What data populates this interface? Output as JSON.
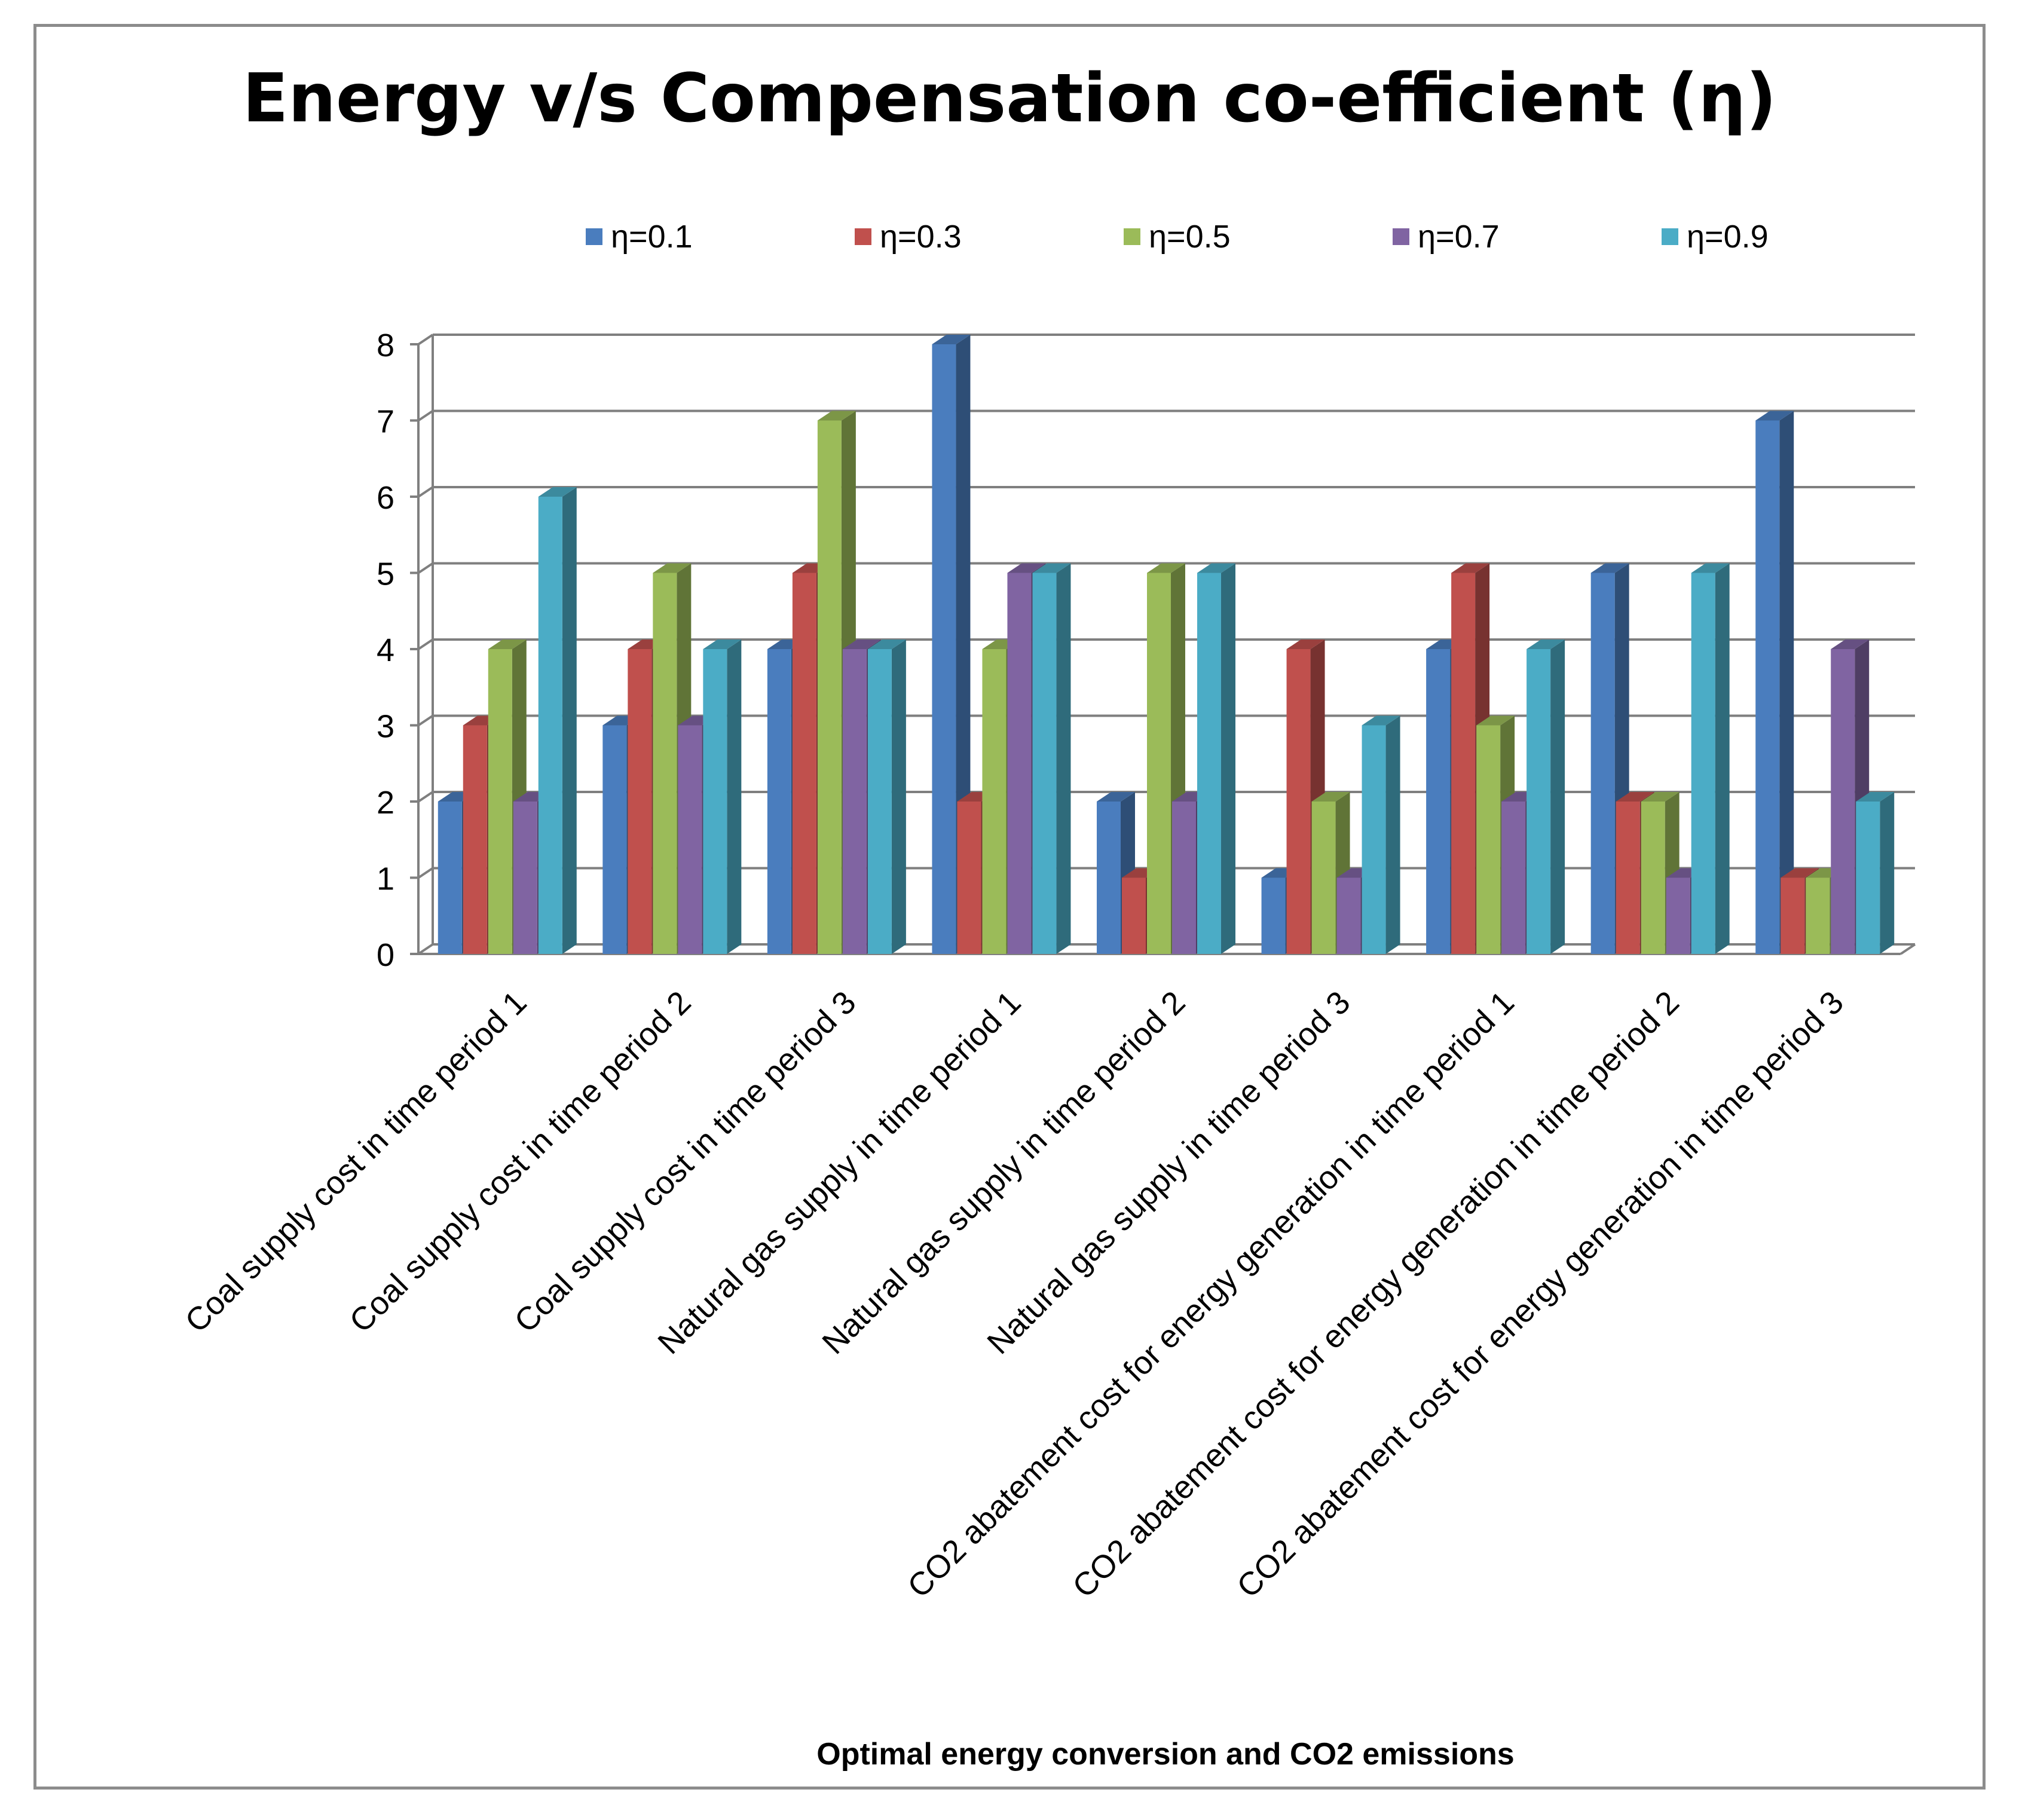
{
  "chart_data": {
    "type": "bar",
    "title": "Energy v/s Compensation co-efficient (η)",
    "xlabel": "Optimal energy conversion and CO2 emissions",
    "ylabel": "",
    "ylim": [
      0,
      8
    ],
    "yticks": [
      "0",
      "1",
      "2",
      "3",
      "4",
      "5",
      "6",
      "7",
      "8"
    ],
    "grid": true,
    "legend_position": "top",
    "categories": [
      "Coal supply cost in time period 1",
      "Coal supply cost in time period 2",
      "Coal supply cost in time period 3",
      "Natural gas supply in time period 1",
      "Natural gas supply in time period 2",
      "Natural gas supply in time period 3",
      "CO2 abatement cost for energy generation in time period 1",
      "CO2 abatement cost for energy generation in time period 2",
      "CO2 abatement cost for energy generation in time period 3"
    ],
    "series": [
      {
        "name": "η=0.1",
        "color": "#4a7dbe",
        "values": [
          2,
          3,
          4,
          8,
          2,
          1,
          4,
          5,
          7
        ]
      },
      {
        "name": "η=0.3",
        "color": "#c0504d",
        "values": [
          3,
          4,
          5,
          2,
          1,
          4,
          5,
          2,
          1
        ]
      },
      {
        "name": "η=0.5",
        "color": "#9bbb59",
        "values": [
          4,
          5,
          7,
          4,
          5,
          2,
          3,
          2,
          1
        ]
      },
      {
        "name": "η=0.7",
        "color": "#8064a2",
        "values": [
          2,
          3,
          4,
          5,
          2,
          1,
          2,
          1,
          4
        ]
      },
      {
        "name": "η=0.9",
        "color": "#4bacc6",
        "values": [
          6,
          4,
          4,
          5,
          5,
          3,
          4,
          5,
          2
        ]
      }
    ]
  }
}
